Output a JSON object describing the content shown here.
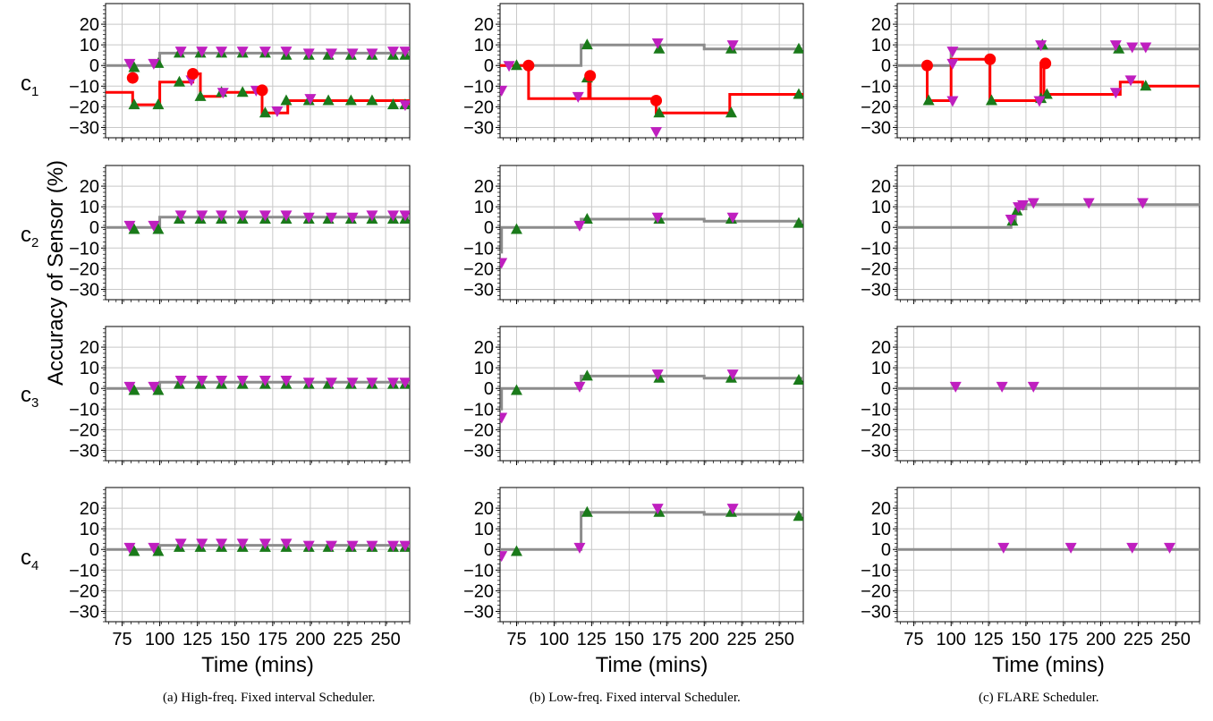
{
  "figure": {
    "ylabel": "Accuracy of Sensor (%)",
    "xlabel": "Time (mins)",
    "row_labels": [
      {
        "main": "c",
        "sub": "1"
      },
      {
        "main": "c",
        "sub": "2"
      },
      {
        "main": "c",
        "sub": "3"
      },
      {
        "main": "c",
        "sub": "4"
      }
    ],
    "captions": [
      "(a) High-freq. Fixed interval Scheduler.",
      "(b) Low-freq. Fixed interval Scheduler.",
      "(c) FLARE Scheduler."
    ],
    "yticks": [
      20,
      10,
      0,
      -10,
      -20,
      -30
    ],
    "ylim": [
      -35,
      30
    ],
    "columns": [
      {
        "xlim": [
          64,
          266
        ],
        "xticks": [
          75,
          100,
          125,
          150,
          175,
          200,
          225,
          250
        ]
      },
      {
        "xlim": [
          64,
          266
        ],
        "xticks": [
          75,
          100,
          125,
          150,
          175,
          200,
          225,
          250
        ]
      },
      {
        "xlim": [
          64,
          266
        ],
        "xticks": [
          75,
          100,
          125,
          150,
          175,
          200,
          225,
          250
        ]
      }
    ],
    "colors": {
      "gray_line": "#8c8c8c",
      "red_line": "#ff0000",
      "up_marker": "#1a7a1a",
      "down_marker": "#bf1fbf",
      "red_marker": "#ff0000",
      "grid": "#c8c8c8"
    }
  },
  "chart_data": [
    {
      "type": "line",
      "row": 1,
      "col": 1,
      "gray": [
        [
          64,
          0
        ],
        [
          100,
          0
        ],
        [
          100,
          6
        ],
        [
          266,
          6
        ]
      ],
      "red": [
        [
          64,
          -13
        ],
        [
          82,
          -13
        ],
        [
          82,
          -19
        ],
        [
          100,
          -19
        ],
        [
          100,
          -8
        ],
        [
          122,
          -8
        ],
        [
          122,
          -4
        ],
        [
          127,
          -4
        ],
        [
          127,
          -15
        ],
        [
          140,
          -15
        ],
        [
          140,
          -13
        ],
        [
          168,
          -13
        ],
        [
          168,
          -23
        ],
        [
          185,
          -23
        ],
        [
          185,
          -17
        ],
        [
          266,
          -17
        ],
        [
          266,
          -19
        ]
      ],
      "red_points": [
        [
          82,
          -6
        ],
        [
          122,
          -4
        ],
        [
          168,
          -12
        ]
      ],
      "up": [
        [
          83,
          -19
        ],
        [
          99,
          -19
        ],
        [
          113,
          -8
        ],
        [
          127,
          -15
        ],
        [
          141,
          -13
        ],
        [
          155,
          -13
        ],
        [
          170,
          -23
        ],
        [
          184,
          -17
        ],
        [
          199,
          -17
        ],
        [
          212,
          -17
        ],
        [
          227,
          -17
        ],
        [
          241,
          -17
        ],
        [
          255,
          -19
        ],
        [
          263,
          -19
        ],
        [
          83,
          -1
        ],
        [
          99,
          1
        ],
        [
          113,
          6
        ],
        [
          127,
          6
        ],
        [
          141,
          6
        ],
        [
          155,
          6
        ],
        [
          170,
          6
        ],
        [
          184,
          5
        ],
        [
          199,
          5
        ],
        [
          212,
          5
        ],
        [
          227,
          5
        ],
        [
          241,
          5
        ],
        [
          255,
          5
        ],
        [
          263,
          5
        ]
      ],
      "down": [
        [
          80,
          1
        ],
        [
          96,
          1
        ],
        [
          114,
          7
        ],
        [
          128,
          7
        ],
        [
          141,
          7
        ],
        [
          155,
          7
        ],
        [
          170,
          7
        ],
        [
          184,
          7
        ],
        [
          199,
          6
        ],
        [
          214,
          6
        ],
        [
          228,
          6
        ],
        [
          241,
          6
        ],
        [
          255,
          7
        ],
        [
          263,
          7
        ],
        [
          121,
          -7
        ],
        [
          142,
          -13
        ],
        [
          164,
          -12
        ],
        [
          178,
          -22
        ],
        [
          200,
          -16
        ],
        [
          263,
          -19
        ]
      ]
    },
    {
      "type": "line",
      "row": 1,
      "col": 2,
      "gray": [
        [
          64,
          0
        ],
        [
          118,
          0
        ],
        [
          118,
          10
        ],
        [
          200,
          10
        ],
        [
          200,
          8
        ],
        [
          266,
          8
        ]
      ],
      "red": [
        [
          64,
          0
        ],
        [
          83,
          0
        ],
        [
          83,
          -16
        ],
        [
          123,
          -16
        ],
        [
          123,
          -5
        ],
        [
          124,
          -5
        ],
        [
          124,
          -16
        ],
        [
          168,
          -16
        ],
        [
          168,
          -23
        ],
        [
          217,
          -23
        ],
        [
          217,
          -14
        ],
        [
          266,
          -14
        ]
      ],
      "red_points": [
        [
          83,
          0
        ],
        [
          124,
          -5
        ],
        [
          168,
          -17
        ]
      ],
      "up": [
        [
          75,
          0
        ],
        [
          122,
          -6
        ],
        [
          122,
          10
        ],
        [
          170,
          8
        ],
        [
          218,
          8
        ],
        [
          263,
          8
        ],
        [
          170,
          -23
        ],
        [
          218,
          -23
        ],
        [
          263,
          -14
        ]
      ],
      "down": [
        [
          65,
          -12
        ],
        [
          116,
          -15
        ],
        [
          168,
          -32
        ],
        [
          169,
          11
        ],
        [
          219,
          10
        ],
        [
          70,
          0
        ]
      ]
    },
    {
      "type": "line",
      "row": 1,
      "col": 3,
      "gray": [
        [
          64,
          0
        ],
        [
          100,
          0
        ],
        [
          100,
          8
        ],
        [
          266,
          8
        ]
      ],
      "red": [
        [
          84,
          0
        ],
        [
          84,
          -17
        ],
        [
          100,
          -17
        ],
        [
          100,
          3
        ],
        [
          126,
          3
        ],
        [
          126,
          -17
        ],
        [
          160,
          -17
        ],
        [
          160,
          1
        ],
        [
          162,
          1
        ],
        [
          162,
          -14
        ],
        [
          213,
          -14
        ],
        [
          213,
          -8
        ],
        [
          228,
          -8
        ],
        [
          228,
          -10
        ],
        [
          266,
          -10
        ]
      ],
      "red_points": [
        [
          84,
          0
        ],
        [
          126,
          3
        ],
        [
          163,
          1
        ]
      ],
      "up": [
        [
          85,
          -17
        ],
        [
          127,
          -17
        ],
        [
          160,
          -16
        ],
        [
          164,
          -14
        ],
        [
          212,
          8
        ],
        [
          230,
          -10
        ],
        [
          161,
          10
        ]
      ],
      "down": [
        [
          101,
          -17
        ],
        [
          101,
          7
        ],
        [
          101,
          1
        ],
        [
          159,
          -17
        ],
        [
          160,
          10
        ],
        [
          210,
          10
        ],
        [
          221,
          9
        ],
        [
          230,
          9
        ],
        [
          210,
          -13
        ],
        [
          220,
          -7
        ]
      ]
    },
    {
      "type": "line",
      "row": 2,
      "col": 1,
      "gray": [
        [
          64,
          0
        ],
        [
          100,
          0
        ],
        [
          100,
          5
        ],
        [
          266,
          5
        ]
      ],
      "red": [],
      "red_points": [],
      "up": [
        [
          83,
          -1
        ],
        [
          99,
          -1
        ],
        [
          113,
          4
        ],
        [
          127,
          4
        ],
        [
          141,
          4
        ],
        [
          155,
          4
        ],
        [
          170,
          4
        ],
        [
          184,
          4
        ],
        [
          199,
          4
        ],
        [
          212,
          4
        ],
        [
          227,
          4
        ],
        [
          241,
          4
        ],
        [
          255,
          4
        ],
        [
          263,
          4
        ]
      ],
      "down": [
        [
          80,
          1
        ],
        [
          96,
          1
        ],
        [
          114,
          6
        ],
        [
          128,
          6
        ],
        [
          141,
          6
        ],
        [
          155,
          6
        ],
        [
          170,
          6
        ],
        [
          184,
          6
        ],
        [
          199,
          5
        ],
        [
          214,
          5
        ],
        [
          228,
          5
        ],
        [
          241,
          6
        ],
        [
          255,
          6
        ],
        [
          263,
          6
        ]
      ]
    },
    {
      "type": "line",
      "row": 2,
      "col": 2,
      "gray": [
        [
          64,
          -12
        ],
        [
          65,
          -12
        ],
        [
          65,
          0
        ],
        [
          118,
          0
        ],
        [
          118,
          4
        ],
        [
          200,
          4
        ],
        [
          200,
          3
        ],
        [
          266,
          3
        ]
      ],
      "red": [],
      "red_points": [],
      "up": [
        [
          75,
          -1
        ],
        [
          122,
          4
        ],
        [
          170,
          4
        ],
        [
          218,
          4
        ],
        [
          263,
          2
        ]
      ],
      "down": [
        [
          65,
          -17
        ],
        [
          117,
          1
        ],
        [
          169,
          5
        ],
        [
          219,
          5
        ]
      ]
    },
    {
      "type": "line",
      "row": 2,
      "col": 3,
      "gray": [
        [
          64,
          0
        ],
        [
          140,
          0
        ],
        [
          140,
          3
        ],
        [
          143,
          3
        ],
        [
          143,
          9
        ],
        [
          150,
          9
        ],
        [
          150,
          11
        ],
        [
          266,
          11
        ]
      ],
      "red": [],
      "red_points": [],
      "up": [
        [
          141,
          3
        ],
        [
          144,
          8
        ]
      ],
      "down": [
        [
          140,
          4
        ],
        [
          145,
          10
        ],
        [
          148,
          11
        ],
        [
          155,
          12
        ],
        [
          192,
          12
        ],
        [
          228,
          12
        ]
      ]
    },
    {
      "type": "line",
      "row": 3,
      "col": 1,
      "gray": [
        [
          64,
          0
        ],
        [
          100,
          0
        ],
        [
          100,
          3
        ],
        [
          266,
          3
        ]
      ],
      "red": [],
      "red_points": [],
      "up": [
        [
          83,
          -1
        ],
        [
          99,
          -1
        ],
        [
          113,
          2
        ],
        [
          127,
          2
        ],
        [
          141,
          2
        ],
        [
          155,
          2
        ],
        [
          170,
          2
        ],
        [
          184,
          2
        ],
        [
          199,
          2
        ],
        [
          212,
          2
        ],
        [
          227,
          2
        ],
        [
          241,
          2
        ],
        [
          255,
          2
        ],
        [
          263,
          2
        ]
      ],
      "down": [
        [
          80,
          1
        ],
        [
          96,
          1
        ],
        [
          114,
          4
        ],
        [
          128,
          4
        ],
        [
          141,
          4
        ],
        [
          155,
          4
        ],
        [
          170,
          4
        ],
        [
          184,
          4
        ],
        [
          199,
          3
        ],
        [
          214,
          3
        ],
        [
          228,
          3
        ],
        [
          241,
          3
        ],
        [
          255,
          3
        ],
        [
          263,
          3
        ]
      ]
    },
    {
      "type": "line",
      "row": 3,
      "col": 2,
      "gray": [
        [
          64,
          -10
        ],
        [
          65,
          -10
        ],
        [
          65,
          0
        ],
        [
          118,
          0
        ],
        [
          118,
          6
        ],
        [
          200,
          6
        ],
        [
          200,
          5
        ],
        [
          266,
          5
        ]
      ],
      "red": [],
      "red_points": [],
      "up": [
        [
          75,
          -1
        ],
        [
          122,
          6
        ],
        [
          170,
          5
        ],
        [
          218,
          5
        ],
        [
          263,
          4
        ]
      ],
      "down": [
        [
          65,
          -14
        ],
        [
          117,
          1
        ],
        [
          169,
          7
        ],
        [
          219,
          7
        ]
      ]
    },
    {
      "type": "line",
      "row": 3,
      "col": 3,
      "gray": [
        [
          64,
          0
        ],
        [
          266,
          0
        ]
      ],
      "red": [],
      "red_points": [],
      "up": [],
      "down": [
        [
          103,
          1
        ],
        [
          134,
          1
        ],
        [
          155,
          1
        ]
      ]
    },
    {
      "type": "line",
      "row": 4,
      "col": 1,
      "gray": [
        [
          64,
          0
        ],
        [
          100,
          0
        ],
        [
          100,
          2
        ],
        [
          266,
          2
        ]
      ],
      "red": [],
      "red_points": [],
      "up": [
        [
          83,
          -1
        ],
        [
          99,
          -1
        ],
        [
          113,
          1
        ],
        [
          127,
          1
        ],
        [
          141,
          1
        ],
        [
          155,
          1
        ],
        [
          170,
          1
        ],
        [
          184,
          1
        ],
        [
          199,
          1
        ],
        [
          212,
          1
        ],
        [
          227,
          1
        ],
        [
          241,
          1
        ],
        [
          255,
          1
        ],
        [
          263,
          1
        ]
      ],
      "down": [
        [
          80,
          1
        ],
        [
          96,
          1
        ],
        [
          114,
          3
        ],
        [
          128,
          3
        ],
        [
          141,
          3
        ],
        [
          155,
          3
        ],
        [
          170,
          3
        ],
        [
          184,
          3
        ],
        [
          199,
          2
        ],
        [
          214,
          2
        ],
        [
          228,
          2
        ],
        [
          241,
          2
        ],
        [
          255,
          2
        ],
        [
          263,
          2
        ]
      ]
    },
    {
      "type": "line",
      "row": 4,
      "col": 2,
      "gray": [
        [
          64,
          0
        ],
        [
          118,
          0
        ],
        [
          118,
          18
        ],
        [
          200,
          18
        ],
        [
          200,
          17
        ],
        [
          266,
          17
        ]
      ],
      "red": [],
      "red_points": [],
      "up": [
        [
          75,
          -1
        ],
        [
          122,
          18
        ],
        [
          170,
          18
        ],
        [
          218,
          18
        ],
        [
          263,
          16
        ]
      ],
      "down": [
        [
          65,
          -3
        ],
        [
          117,
          1
        ],
        [
          169,
          20
        ],
        [
          219,
          20
        ]
      ]
    },
    {
      "type": "line",
      "row": 4,
      "col": 3,
      "gray": [
        [
          64,
          0
        ],
        [
          266,
          0
        ]
      ],
      "red": [],
      "red_points": [],
      "up": [],
      "down": [
        [
          135,
          1
        ],
        [
          180,
          1
        ],
        [
          221,
          1
        ],
        [
          246,
          1
        ]
      ]
    }
  ]
}
